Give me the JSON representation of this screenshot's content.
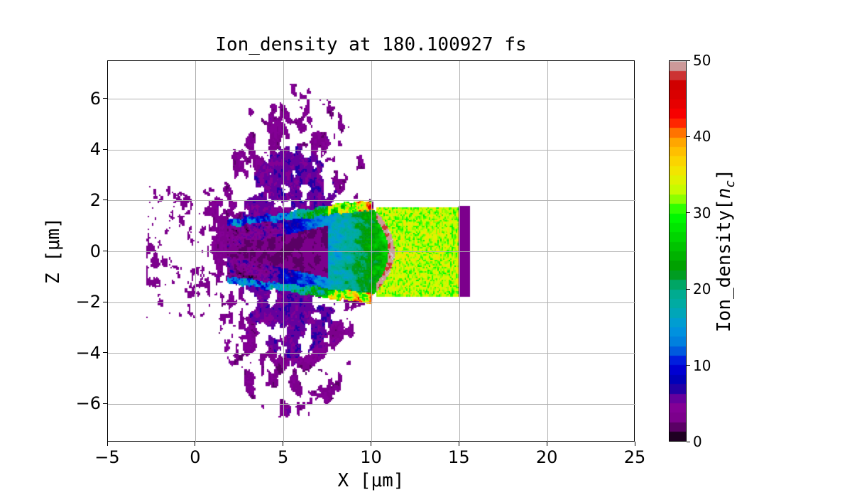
{
  "chart_data": {
    "type": "heatmap",
    "title": "Ion_density at 180.100927 fs",
    "xlabel": "X [μm]",
    "ylabel": "Z [μm]",
    "xlim": [
      -5,
      25
    ],
    "ylim": [
      -7.5,
      7.5
    ],
    "xticks": [
      -5,
      0,
      5,
      10,
      15,
      20,
      25
    ],
    "yticks": [
      -6,
      -4,
      -2,
      0,
      2,
      4,
      6
    ],
    "xtick_labels": [
      "−5",
      "0",
      "5",
      "10",
      "15",
      "20",
      "25"
    ],
    "ytick_labels": [
      "−6",
      "−4",
      "−2",
      "0",
      "2",
      "4",
      "6"
    ],
    "grid": true,
    "colormap": "nipy_spectral",
    "colorbar": {
      "label": "Ion_density[n_c]",
      "label_main": "Ion_density[",
      "label_n": "n",
      "label_sub": "c",
      "label_end": "]",
      "range": [
        0,
        50
      ],
      "ticks": [
        "0",
        "10",
        "20",
        "30",
        "40",
        "50"
      ]
    },
    "background": "#ffffff"
  }
}
